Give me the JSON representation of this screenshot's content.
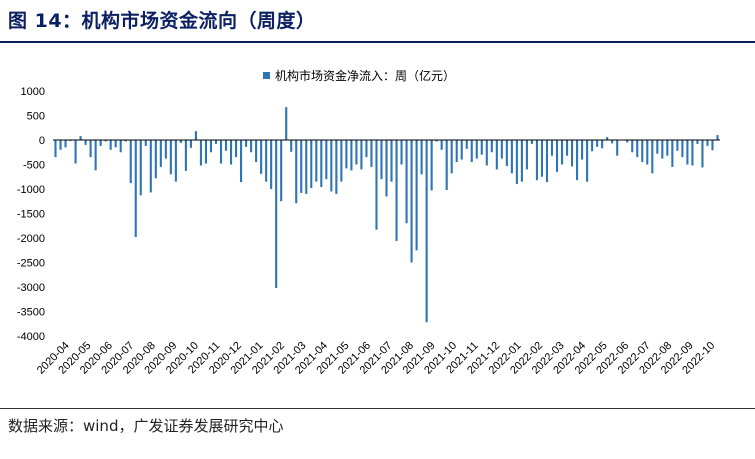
{
  "header": {
    "title": "图 14：机构市场资金流向（周度）"
  },
  "footer": {
    "source": "数据来源：wind，广发证券发展研究中心"
  },
  "colors": {
    "bar": "#2e75b6",
    "title": "#0b1f63"
  },
  "chart_data": {
    "type": "bar",
    "title": "",
    "legend": [
      "机构市场资金净流入：周（亿元）"
    ],
    "legend_position": "top-center",
    "xlabel": "",
    "ylabel": "",
    "ylim": [
      -4000,
      1000
    ],
    "yticks": [
      1000,
      500,
      0,
      -500,
      -1000,
      -1500,
      -2000,
      -2500,
      -3000,
      -3500,
      -4000
    ],
    "month_labels": [
      "2020-04",
      "2020-05",
      "2020-06",
      "2020-07",
      "2020-08",
      "2020-09",
      "2020-10",
      "2020-11",
      "2020-12",
      "2021-01",
      "2021-02",
      "2021-03",
      "2021-04",
      "2021-05",
      "2021-06",
      "2021-07",
      "2021-08",
      "2021-09",
      "2021-10",
      "2021-11",
      "2021-12",
      "2022-01",
      "2022-02",
      "2022-03",
      "2022-04",
      "2022-05",
      "2022-06",
      "2022-07",
      "2022-08",
      "2022-09",
      "2022-10"
    ],
    "series": [
      {
        "name": "机构市场资金净流入：周（亿元）",
        "values": [
          -350,
          -200,
          -150,
          -20,
          -480,
          80,
          -100,
          -350,
          -620,
          -120,
          -30,
          -200,
          -150,
          -250,
          -30,
          -880,
          -1980,
          -1130,
          -120,
          -1070,
          -780,
          -550,
          -380,
          -700,
          -850,
          -60,
          -630,
          -160,
          180,
          -520,
          -480,
          -250,
          -80,
          -480,
          -220,
          -500,
          -350,
          -860,
          -140,
          -250,
          -450,
          -690,
          -850,
          -1000,
          -3020,
          -1250,
          670,
          -240,
          -1290,
          -1080,
          -1100,
          -980,
          -850,
          -960,
          -800,
          -1050,
          -1100,
          -850,
          -580,
          -620,
          -500,
          -600,
          -350,
          -550,
          -1830,
          -800,
          -1150,
          -850,
          -2060,
          -500,
          -1700,
          -2500,
          -2250,
          -700,
          -3720,
          -1030,
          -30,
          -200,
          -1020,
          -680,
          -450,
          -400,
          -180,
          -450,
          -380,
          -300,
          -520,
          -250,
          -600,
          -380,
          -530,
          -680,
          -900,
          -850,
          -600,
          -80,
          -820,
          -750,
          -860,
          -320,
          -650,
          -500,
          -320,
          -540,
          -820,
          -400,
          -850,
          -230,
          -140,
          -170,
          60,
          -70,
          -320,
          10,
          -50,
          -250,
          -350,
          -450,
          -500,
          -680,
          -280,
          -380,
          -320,
          -550,
          -220,
          -350,
          -500,
          -520,
          -80,
          -560,
          -120,
          -210,
          100
        ]
      }
    ]
  }
}
